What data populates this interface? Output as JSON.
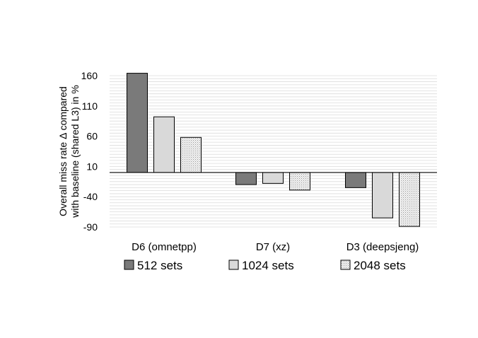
{
  "chart_data": {
    "type": "bar",
    "title": "",
    "xlabel": "",
    "ylabel": [
      "Overall miss rate Δ compared",
      "with baseline (shared L3) in %"
    ],
    "ylim": [
      -90,
      160
    ],
    "yticks": [
      160,
      110,
      60,
      10,
      -40,
      -90
    ],
    "categories": [
      "D6 (omnetpp)",
      "D7 (xz)",
      "D3 (deepsjeng)"
    ],
    "series": [
      {
        "name": "512 sets",
        "values": [
          164,
          -20,
          -25
        ],
        "color": "#7a7a7a",
        "pattern": "solid"
      },
      {
        "name": "1024 sets",
        "values": [
          92,
          -18,
          -75
        ],
        "color": "#d9d9d9",
        "pattern": "solid"
      },
      {
        "name": "2048 sets",
        "values": [
          58,
          -29,
          -89
        ],
        "color": "#e6e6e6",
        "pattern": "dots"
      }
    ],
    "baseline": 0,
    "grid": true,
    "legend_position": "bottom"
  }
}
